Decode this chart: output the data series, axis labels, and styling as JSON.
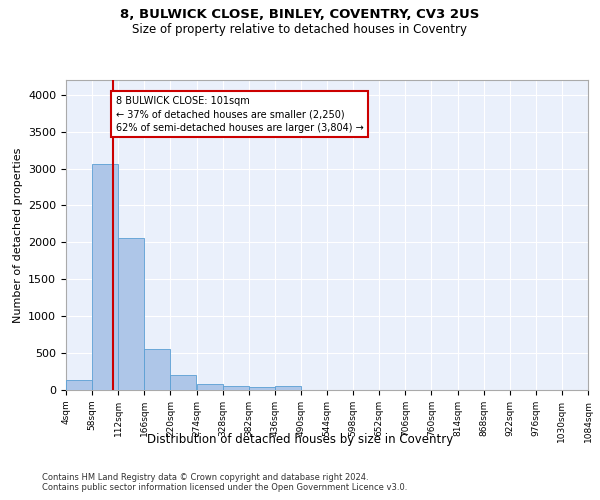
{
  "title_line1": "8, BULWICK CLOSE, BINLEY, COVENTRY, CV3 2US",
  "title_line2": "Size of property relative to detached houses in Coventry",
  "xlabel": "Distribution of detached houses by size in Coventry",
  "ylabel": "Number of detached properties",
  "footer_line1": "Contains HM Land Registry data © Crown copyright and database right 2024.",
  "footer_line2": "Contains public sector information licensed under the Open Government Licence v3.0.",
  "bin_edges": [
    4,
    58,
    112,
    166,
    220,
    274,
    328,
    382,
    436,
    490,
    544,
    598,
    652,
    706,
    760,
    814,
    868,
    922,
    976,
    1030,
    1084
  ],
  "bin_labels": [
    "4sqm",
    "58sqm",
    "112sqm",
    "166sqm",
    "220sqm",
    "274sqm",
    "328sqm",
    "382sqm",
    "436sqm",
    "490sqm",
    "544sqm",
    "598sqm",
    "652sqm",
    "706sqm",
    "760sqm",
    "814sqm",
    "868sqm",
    "922sqm",
    "976sqm",
    "1030sqm",
    "1084sqm"
  ],
  "bar_heights": [
    130,
    3060,
    2060,
    560,
    200,
    80,
    55,
    40,
    50,
    0,
    0,
    0,
    0,
    0,
    0,
    0,
    0,
    0,
    0,
    0
  ],
  "bar_color": "#aec6e8",
  "bar_edge_color": "#5a9fd4",
  "background_color": "#eaf0fb",
  "grid_color": "#ffffff",
  "vline_color": "#cc0000",
  "annotation_text": "8 BULWICK CLOSE: 101sqm\n← 37% of detached houses are smaller (2,250)\n62% of semi-detached houses are larger (3,804) →",
  "annotation_box_color": "#cc0000",
  "property_line_x": 101,
  "ylim": [
    0,
    4200
  ],
  "yticks": [
    0,
    500,
    1000,
    1500,
    2000,
    2500,
    3000,
    3500,
    4000
  ]
}
